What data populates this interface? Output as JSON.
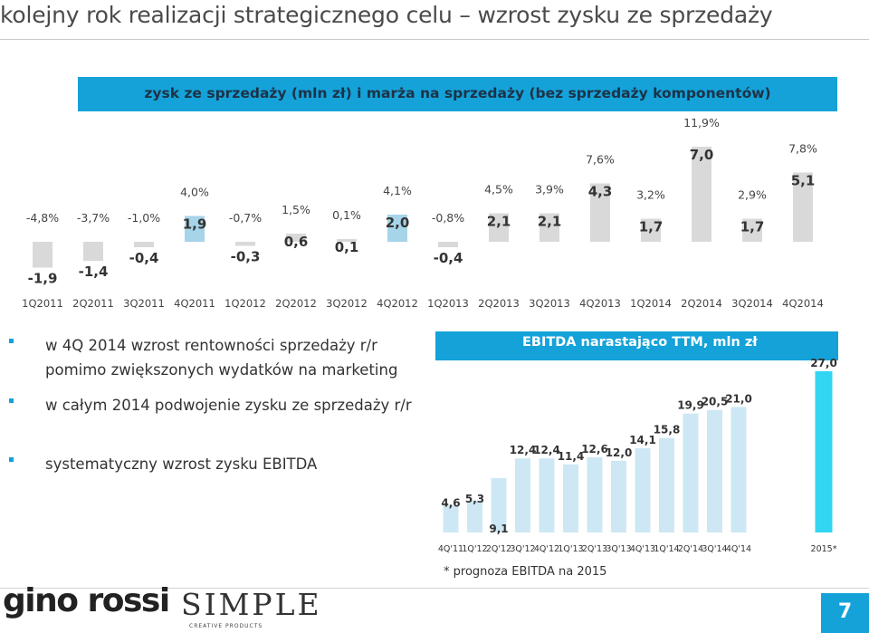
{
  "title": "kolejny rok realizacji strategicznego celu – wzrost zysku ze sprzedaży",
  "banner": {
    "title": "zysk ze sprzedaży (mln zł) i marża na sprzedaży (bez sprzedaży komponentów)"
  },
  "colors": {
    "accent": "#14a2d9",
    "bar_grey": "#d9d9d9",
    "bar_highlight": "#a6d4e8",
    "ebitda_bar": "#cde8f4",
    "ebitda_forecast": "#33d6f2"
  },
  "chart_data": [
    {
      "type": "bar",
      "categories": [
        "1Q2011",
        "2Q2011",
        "3Q2011",
        "4Q2011",
        "1Q2012",
        "2Q2012",
        "3Q2012",
        "4Q2012",
        "1Q2013",
        "2Q2013",
        "3Q2013",
        "4Q2013",
        "1Q2014",
        "2Q2014",
        "3Q2014",
        "4Q2014"
      ],
      "values": [
        -1.9,
        -1.4,
        -0.4,
        1.9,
        -0.3,
        0.6,
        0.1,
        2.0,
        -0.4,
        2.1,
        2.1,
        4.3,
        1.7,
        7.0,
        1.7,
        5.1
      ],
      "value_labels": [
        "-1,9",
        "-1,4",
        "-0,4",
        "1,9",
        "-0,3",
        "0,6",
        "0,1",
        "2,0",
        "-0,4",
        "2,1",
        "2,1",
        "4,3",
        "1,7",
        "7,0",
        "1,7",
        "5,1"
      ],
      "margin_labels": [
        "-4,8%",
        "-3,7%",
        "-1,0%",
        "4,0%",
        "-0,7%",
        "1,5%",
        "0,1%",
        "4,1%",
        "-0,8%",
        "4,5%",
        "3,9%",
        "7,6%",
        "3,2%",
        "11,9%",
        "2,9%",
        "7,8%"
      ],
      "highlight": [
        false,
        false,
        false,
        true,
        false,
        false,
        false,
        true,
        false,
        false,
        false,
        false,
        false,
        false,
        false,
        false
      ],
      "xlabel": "",
      "ylabel": ""
    },
    {
      "type": "bar",
      "title": "EBITDA narastająco TTM, mln zł",
      "categories": [
        "4Q'11",
        "1Q'12",
        "2Q'12",
        "3Q'12",
        "4Q'12",
        "1Q'13",
        "2Q'13",
        "3Q'13",
        "4Q'13",
        "1Q'14",
        "2Q'14",
        "3Q'14",
        "4Q'14",
        "2015*"
      ],
      "values": [
        4.6,
        5.3,
        9.1,
        12.4,
        12.4,
        11.4,
        12.6,
        12.0,
        14.1,
        15.8,
        19.9,
        20.5,
        21.0,
        27.0
      ],
      "value_labels": [
        "4,6",
        "5,3",
        "9,1",
        "12,4",
        "12,4",
        "11,4",
        "12,6",
        "12,0",
        "14,1",
        "15,8",
        "19,9",
        "20,5",
        "21,0",
        "27,0"
      ],
      "forecast": [
        false,
        false,
        false,
        false,
        false,
        false,
        false,
        false,
        false,
        false,
        false,
        false,
        false,
        true
      ]
    }
  ],
  "bullets": [
    {
      "text": "w 4Q 2014 wzrost rentowności sprzedaży r/r pomimo zwiększonych wydatków na marketing"
    },
    {
      "text": "w całym 2014 podwojenie zysku ze sprzedaży r/r"
    },
    {
      "text": "systematyczny wzrost zysku EBITDA"
    }
  ],
  "footnote": "* prognoza EBITDA na 2015",
  "footer": {
    "logo_gino": "gino rossi",
    "logo_simple": "SIMPLE",
    "logo_simple_sub": "CREATIVE PRODUCTS",
    "page_number": "7"
  }
}
